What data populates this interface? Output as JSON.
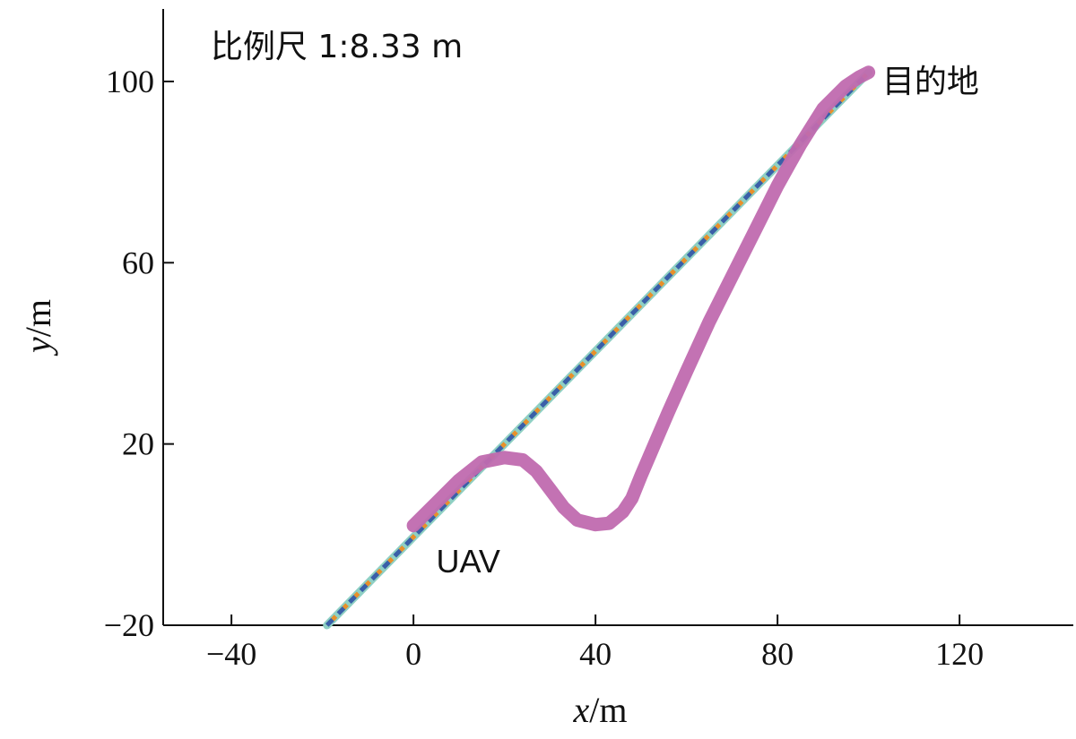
{
  "scale_label": "比例尺 1:8.33 m",
  "chart_data": {
    "type": "line",
    "title": "",
    "xlabel": {
      "var": "x",
      "unit": "/m"
    },
    "ylabel": {
      "var": "y",
      "unit": "/m"
    },
    "xlim": [
      -55,
      145
    ],
    "ylim": [
      -20,
      116
    ],
    "xticks": [
      -40,
      0,
      40,
      80,
      120
    ],
    "yticks": [
      -20,
      20,
      60,
      100
    ],
    "grid": false,
    "legend": "none",
    "annotations": [
      {
        "text": "UAV",
        "x": 5,
        "y": -6
      },
      {
        "text": "目的地",
        "x": 103,
        "y": 100
      }
    ],
    "series": [
      {
        "style": "straight-dashed",
        "colors": [
          "#8fd0c4",
          "#3a5fa8",
          "#e8902a"
        ],
        "x": [
          -19,
          100
        ],
        "y": [
          -20,
          102
        ]
      },
      {
        "style": "thick-solid",
        "colors": [
          "#c06aaf"
        ],
        "x": [
          0,
          5,
          10,
          15,
          20,
          24,
          27,
          30,
          33,
          36,
          40,
          43,
          46,
          48,
          50,
          53,
          56,
          60,
          65,
          70,
          75,
          80,
          85,
          90,
          95,
          98,
          100
        ],
        "y": [
          2,
          7,
          12,
          16,
          17,
          16.5,
          14,
          10,
          6,
          3.2,
          2.2,
          2.5,
          5,
          8,
          13,
          20,
          27,
          36,
          47,
          57,
          67,
          77,
          86,
          94,
          99,
          101,
          102
        ]
      }
    ]
  }
}
